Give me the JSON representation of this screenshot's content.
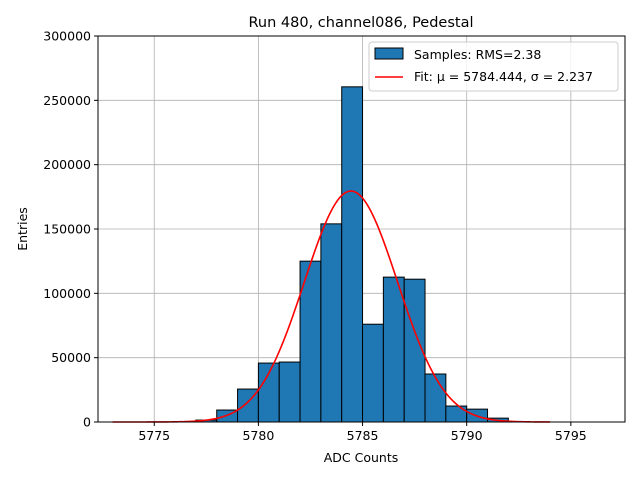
{
  "chart_data": {
    "type": "bar",
    "title": "Run 480, channel086, Pedestal",
    "xlabel": "ADC Counts",
    "ylabel": "Entries",
    "xlim": [
      5772.3,
      5797.6
    ],
    "ylim": [
      0,
      300000
    ],
    "xticks": [
      5775,
      5780,
      5785,
      5790,
      5795
    ],
    "xtick_labels": [
      "5775",
      "5780",
      "5785",
      "5790",
      "5795"
    ],
    "yticks": [
      0,
      50000,
      100000,
      150000,
      200000,
      250000,
      300000
    ],
    "ytick_labels": [
      "0",
      "50000",
      "100000",
      "150000",
      "200000",
      "250000",
      "300000"
    ],
    "grid": true,
    "legend_position": "top-right",
    "bin_edges": [
      5777,
      5778,
      5779,
      5780,
      5781,
      5782,
      5783,
      5784,
      5785,
      5786,
      5787,
      5788,
      5789,
      5790,
      5791,
      5792
    ],
    "values": [
      1500,
      9300,
      25600,
      45800,
      46600,
      125000,
      154000,
      260500,
      76000,
      112600,
      111000,
      37300,
      12400,
      10000,
      3000
    ],
    "series": [
      {
        "name": "Samples: RMS=2.38",
        "type": "histogram",
        "color": "#1f77b4"
      },
      {
        "name": "Fit: μ = 5784.444, σ = 2.237",
        "type": "line",
        "color": "#ff0000",
        "mu": 5784.444,
        "sigma": 2.237,
        "amplitude": 179500,
        "x_range": [
          5773,
          5794
        ]
      }
    ]
  }
}
